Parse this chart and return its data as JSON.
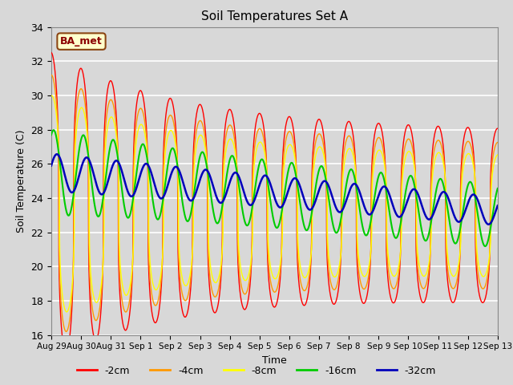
{
  "title": "Soil Temperatures Set A",
  "xlabel": "Time",
  "ylabel": "Soil Temperature (C)",
  "ylim": [
    16,
    34
  ],
  "background_color": "#d8d8d8",
  "plot_bg_color": "#d8d8d8",
  "grid_color": "#ffffff",
  "colors": {
    "-2cm": "#ff0000",
    "-4cm": "#ff9900",
    "-8cm": "#ffff00",
    "-16cm": "#00cc00",
    "-32cm": "#0000bb"
  },
  "tick_labels": [
    "Aug 29",
    "Aug 30",
    "Aug 31",
    "Sep 1",
    "Sep 2",
    "Sep 3",
    "Sep 4",
    "Sep 5",
    "Sep 6",
    "Sep 7",
    "Sep 8",
    "Sep 9",
    "Sep 10",
    "Sep 11",
    "Sep 12",
    "Sep 13"
  ],
  "tick_positions": [
    0,
    1,
    2,
    3,
    4,
    5,
    6,
    7,
    8,
    9,
    10,
    11,
    12,
    13,
    14,
    15
  ]
}
